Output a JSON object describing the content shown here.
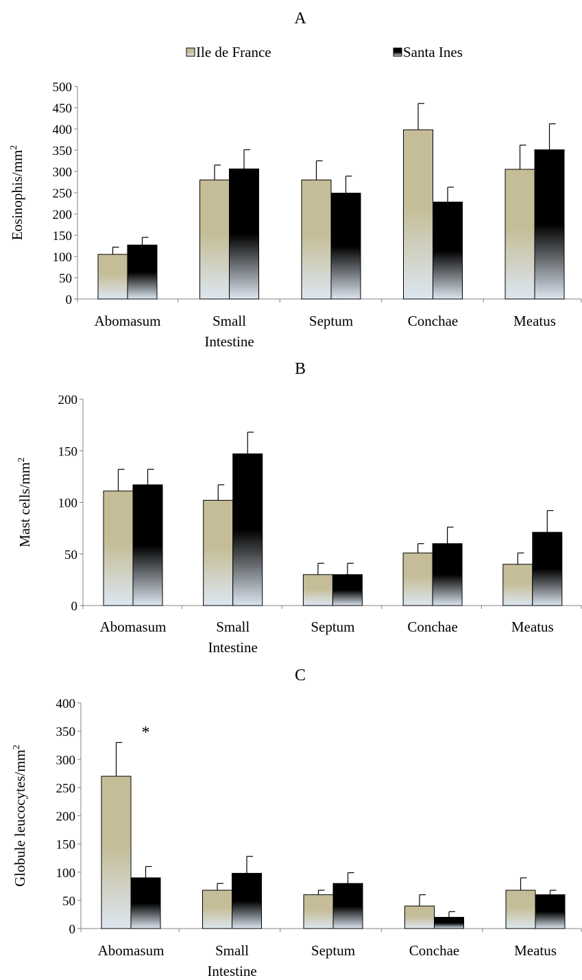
{
  "legend": {
    "items": [
      {
        "label": "Ile de France",
        "color": "#c5bd97"
      },
      {
        "label": "Santa Ines",
        "color": "#000000"
      }
    ]
  },
  "colors": {
    "ile_de_france_top": "#c5bd97",
    "ile_de_france_bottom": "#dce6f0",
    "santa_ines_top": "#000000",
    "santa_ines_bottom": "#dce6f0"
  },
  "chart_data": [
    {
      "type": "bar",
      "title": "A",
      "ylabel": "Eosinophis/mm",
      "ylabel_superscript": "2",
      "categories": [
        [
          "Abomasum"
        ],
        [
          "Small",
          "Intestine"
        ],
        [
          "Septum"
        ],
        [
          "Conchae"
        ],
        [
          "Meatus"
        ]
      ],
      "ylim": [
        0,
        500
      ],
      "yticks": [
        0,
        50,
        100,
        150,
        200,
        250,
        300,
        350,
        400,
        450,
        500
      ],
      "series": [
        {
          "name": "Ile de France",
          "values": [
            105,
            280,
            280,
            398,
            305
          ],
          "errors": [
            17,
            35,
            45,
            62,
            57
          ]
        },
        {
          "name": "Santa Ines",
          "values": [
            127,
            306,
            249,
            228,
            351
          ],
          "errors": [
            18,
            45,
            40,
            35,
            61
          ]
        }
      ],
      "annotations": []
    },
    {
      "type": "bar",
      "title": "B",
      "ylabel": "Mast cells/mm",
      "ylabel_superscript": "2",
      "categories": [
        [
          "Abomasum"
        ],
        [
          "Small",
          "Intestine"
        ],
        [
          "Septum"
        ],
        [
          "Conchae"
        ],
        [
          "Meatus"
        ]
      ],
      "ylim": [
        0,
        200
      ],
      "yticks": [
        0,
        50,
        100,
        150,
        200
      ],
      "series": [
        {
          "name": "Ile de France",
          "values": [
            111,
            102,
            30,
            51,
            40
          ],
          "errors": [
            21,
            15,
            11,
            9,
            11
          ]
        },
        {
          "name": "Santa Ines",
          "values": [
            117,
            147,
            30,
            60,
            71
          ],
          "errors": [
            15,
            21,
            11,
            16,
            21
          ]
        }
      ],
      "annotations": []
    },
    {
      "type": "bar",
      "title": "C",
      "ylabel": "Globule leucocytes/mm",
      "ylabel_superscript": "2",
      "categories": [
        [
          "Abomasum"
        ],
        [
          "Small",
          "Intestine"
        ],
        [
          "Septum"
        ],
        [
          "Conchae"
        ],
        [
          "Meatus"
        ]
      ],
      "ylim": [
        0,
        400
      ],
      "yticks": [
        0,
        50,
        100,
        150,
        200,
        250,
        300,
        350,
        400
      ],
      "series": [
        {
          "name": "Ile de France",
          "values": [
            270,
            68,
            60,
            40,
            68
          ],
          "errors": [
            60,
            12,
            8,
            20,
            22
          ]
        },
        {
          "name": "Santa Ines",
          "values": [
            90,
            98,
            80,
            20,
            60
          ],
          "errors": [
            20,
            30,
            19,
            10,
            8
          ]
        }
      ],
      "annotations": [
        {
          "text": "*",
          "category_index": 0,
          "value": 358
        }
      ]
    }
  ]
}
